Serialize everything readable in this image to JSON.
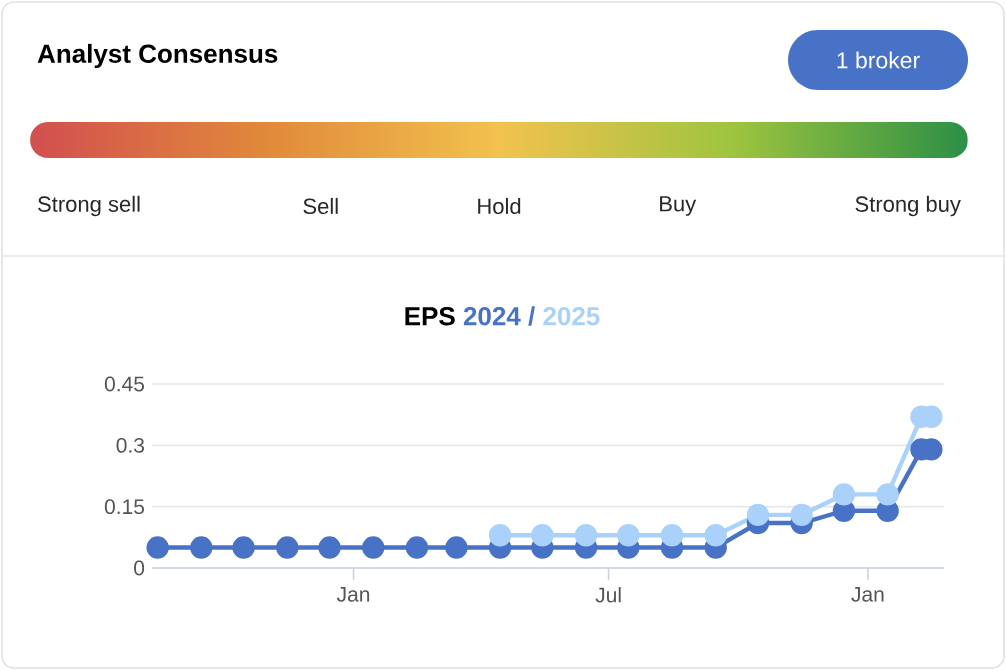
{
  "chart_data": [
    {
      "type": "other",
      "title": "Analyst Consensus",
      "annotations": [
        "1 broker"
      ],
      "categories": [
        "Strong sell",
        "Sell",
        "Hold",
        "Buy",
        "Strong buy"
      ],
      "colors": [
        "#d24f4f",
        "#e0893a",
        "#f2c24e",
        "#9ec43f",
        "#2b8f45"
      ]
    },
    {
      "type": "line",
      "title": "EPS",
      "annotations": [
        "/"
      ],
      "x": [
        "2022-08-15",
        "2022-09-15",
        "2022-10-15",
        "2022-11-15",
        "2022-12-15",
        "2023-01-15",
        "2023-02-15",
        "2023-03-15",
        "2023-04-15",
        "2023-05-15",
        "2023-06-15",
        "2023-07-15",
        "2023-08-15",
        "2023-09-15",
        "2023-10-15",
        "2023-11-15",
        "2023-12-15",
        "2024-01-15",
        "2024-02-08",
        "2024-02-15"
      ],
      "series": [
        {
          "name": "2024",
          "color": "#4872c6",
          "values": [
            0.05,
            0.05,
            0.05,
            0.05,
            0.05,
            0.05,
            0.05,
            0.05,
            0.05,
            0.05,
            0.05,
            0.05,
            0.05,
            0.05,
            0.11,
            0.11,
            0.14,
            0.14,
            0.29,
            0.29
          ]
        },
        {
          "name": "2025",
          "color": "#a9d1fa",
          "values": [
            null,
            null,
            null,
            null,
            null,
            null,
            null,
            null,
            0.08,
            0.08,
            0.08,
            0.08,
            0.08,
            0.08,
            0.13,
            0.13,
            0.18,
            0.18,
            0.37,
            0.37
          ]
        }
      ],
      "xlim": [
        "2022-08-11",
        "2024-02-24"
      ],
      "xticks": [
        {
          "value": "2023-01-01",
          "label": "Jan"
        },
        {
          "value": "2023-07-01",
          "label": "Jul"
        },
        {
          "value": "2024-01-01",
          "label": "Jan"
        }
      ],
      "ylim": [
        0,
        0.45
      ],
      "yticks": [
        0,
        0.15,
        0.3,
        0.45
      ],
      "grid": "y",
      "legend": "top",
      "marker": "circle",
      "line_style": "solid"
    }
  ]
}
